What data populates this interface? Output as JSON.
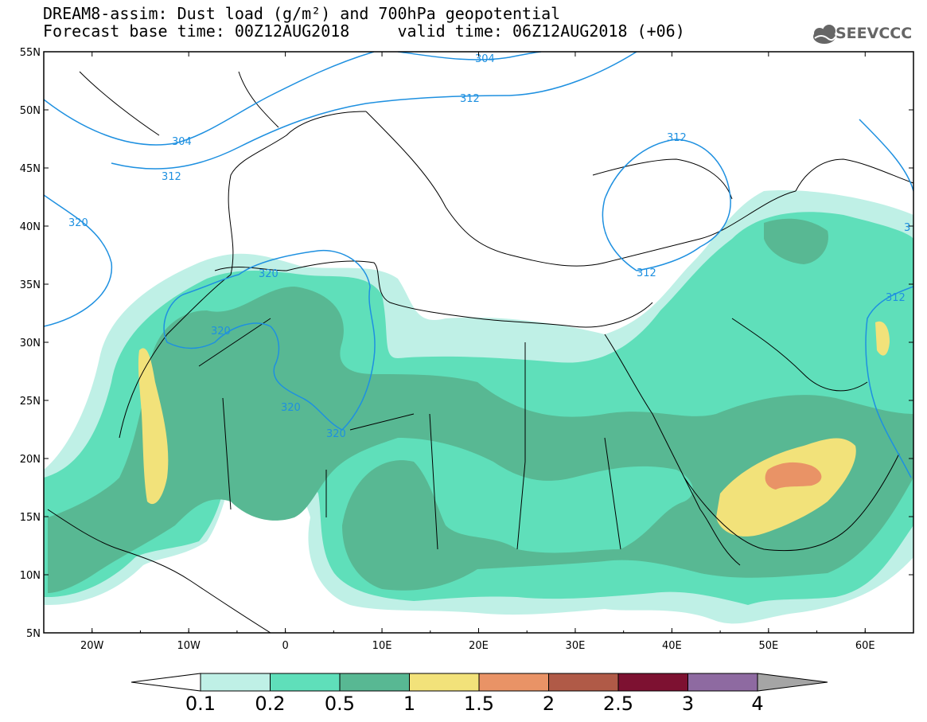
{
  "header": {
    "title_line1": "DREAM8-assim: Dust load (g/m²) and 700hPa geopotential",
    "title_line2": "Forecast base time: 00Z12AUG2018     valid time: 06Z12AUG2018 (+06)"
  },
  "logo": {
    "text": "SEEVCCC",
    "icon": "cloud-icon"
  },
  "map": {
    "lat_labels": [
      "55N",
      "50N",
      "45N",
      "40N",
      "35N",
      "30N",
      "25N",
      "20N",
      "15N",
      "10N",
      "5N"
    ],
    "lon_labels": [
      "20W",
      "10W",
      "0",
      "10E",
      "20E",
      "30E",
      "40E",
      "50E",
      "60E"
    ],
    "lat_range": [
      5,
      55
    ],
    "lon_range": [
      -25,
      65
    ],
    "contour_labels": [
      "304",
      "304",
      "312",
      "312",
      "312",
      "320",
      "320",
      "320",
      "320",
      "320",
      "312",
      "312",
      "3"
    ]
  },
  "colorbar": {
    "labels": [
      "0.1",
      "0.2",
      "0.5",
      "1",
      "1.5",
      "2",
      "2.5",
      "3",
      "4"
    ],
    "colors": [
      "#bff0e6",
      "#5fdfba",
      "#58b893",
      "#f2e27a",
      "#e99366",
      "#b05a47",
      "#7d1131",
      "#8e6aa1",
      "#a5a5a5"
    ],
    "under_color": "#ffffff",
    "over_color": "#a5a5a5"
  },
  "colors": {
    "contour": "#1e90e0",
    "coast": "#000000"
  }
}
